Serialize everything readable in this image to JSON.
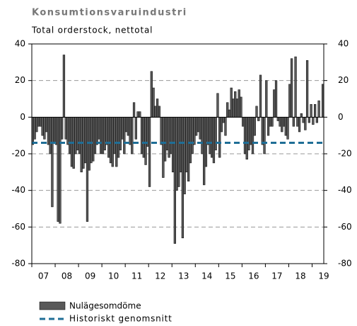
{
  "chart_data": {
    "type": "bar",
    "title": "Konsumtionsvaruindustri",
    "subtitle": "Total orderstock, nettotal",
    "categories": [
      null,
      null,
      null,
      null,
      null,
      "07",
      null,
      null,
      null,
      null,
      null,
      null,
      null,
      null,
      null,
      null,
      null,
      "08",
      null,
      null,
      null,
      null,
      null,
      null,
      null,
      null,
      null,
      null,
      null,
      "09",
      null,
      null,
      null,
      null,
      null,
      null,
      null,
      null,
      null,
      null,
      null,
      "10",
      null,
      null,
      null,
      null,
      null,
      null,
      null,
      null,
      null,
      null,
      null,
      "11",
      null,
      null,
      null,
      null,
      null,
      null,
      null,
      null,
      null,
      null,
      null,
      "12",
      null,
      null,
      null,
      null,
      null,
      null,
      null,
      null,
      null,
      null,
      null,
      "13",
      null,
      null,
      null,
      null,
      null,
      null,
      null,
      null,
      null,
      null,
      null,
      "14",
      null,
      null,
      null,
      null,
      null,
      null,
      null,
      null,
      null,
      null,
      null,
      "15",
      null,
      null,
      null,
      null,
      null,
      null,
      null,
      null,
      null,
      null,
      null,
      "16",
      null,
      null,
      null,
      null,
      null,
      null,
      null,
      null,
      null,
      null,
      null,
      "17",
      null,
      null,
      null,
      null,
      null,
      null,
      null,
      null,
      null,
      null,
      null,
      "18",
      null,
      null,
      null,
      null,
      null,
      null,
      null,
      null,
      null,
      null,
      null,
      "19"
    ],
    "series": [
      {
        "name": "Nulägesomdöme",
        "color": "#595959",
        "values": [
          -15,
          -12,
          -8,
          -5,
          -5,
          -10,
          -12,
          -8,
          -15,
          -20,
          -49,
          -14,
          -15,
          -57,
          -58,
          -12,
          34,
          -12,
          -15,
          -20,
          -27,
          -28,
          -20,
          -18,
          -20,
          -30,
          -28,
          -25,
          -57,
          -29,
          -25,
          -24,
          -20,
          -15,
          -12,
          -20,
          -20,
          -18,
          -15,
          -22,
          -25,
          -27,
          -20,
          -27,
          -22,
          -18,
          -12,
          -20,
          -8,
          -10,
          -15,
          -20,
          8,
          -12,
          3,
          3,
          -20,
          -22,
          -26,
          -16,
          -38,
          25,
          16,
          6,
          10,
          6,
          -15,
          -33,
          -24,
          -18,
          -22,
          -20,
          -30,
          -69,
          -40,
          -38,
          -30,
          -66,
          -42,
          -30,
          -35,
          -25,
          -20,
          -15,
          -10,
          -8,
          -12,
          -20,
          -37,
          -27,
          -15,
          -20,
          -22,
          -25,
          -18,
          13,
          -22,
          -8,
          -3,
          -10,
          8,
          4,
          16,
          10,
          14,
          10,
          15,
          11,
          -5,
          -20,
          -23,
          -18,
          -15,
          -20,
          -10,
          6,
          -2,
          23,
          -15,
          -20,
          20,
          -10,
          -5,
          -5,
          15,
          20,
          -2,
          -5,
          -8,
          -5,
          -10,
          -12,
          18,
          32,
          -5,
          33,
          -5,
          -8,
          2,
          -3,
          -7,
          31,
          -3,
          7,
          -4,
          7,
          -3,
          9,
          0,
          18
        ]
      }
    ],
    "reference_line": {
      "name": "Historiskt genomsnitt",
      "value": -14,
      "color": "#1f6e96"
    },
    "ylim": [
      -80,
      40
    ],
    "yticks": [
      -80,
      -60,
      -40,
      -20,
      0,
      20,
      40
    ],
    "y2lim": [
      -80,
      40
    ],
    "y2ticks": [
      -80,
      -60,
      -40,
      -20,
      0,
      20,
      40
    ],
    "grid": true
  }
}
